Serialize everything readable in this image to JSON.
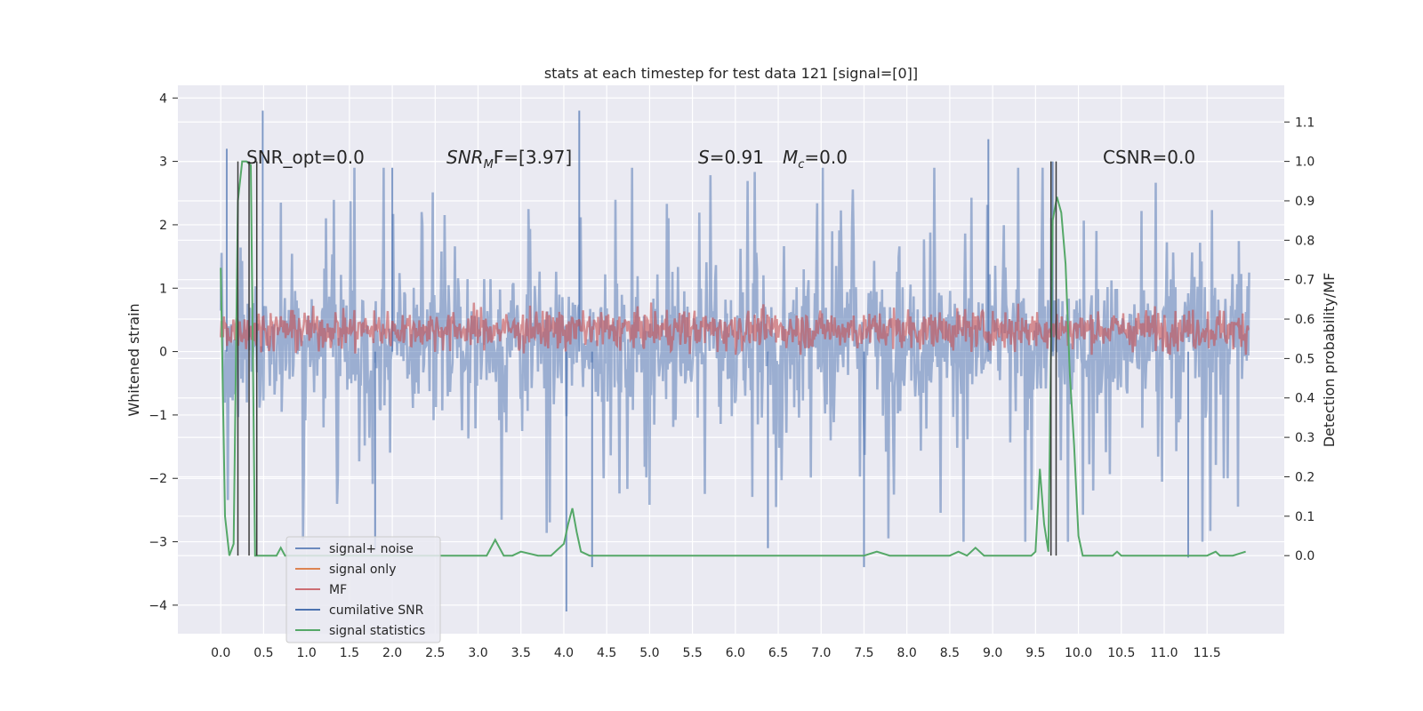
{
  "chart_data": {
    "type": "line",
    "title": "stats at each timestep for test data 121 [signal=[0]]",
    "xlabel": "",
    "ylabel": "Whitened strain",
    "y2label": "Detection probability/MF",
    "xlim": [
      -0.5,
      12.4
    ],
    "ylim": [
      -4.45,
      4.2
    ],
    "y2lim": [
      -0.198,
      1.193
    ],
    "x_ticks": [
      0.0,
      0.5,
      1.0,
      1.5,
      2.0,
      2.5,
      3.0,
      3.5,
      4.0,
      4.5,
      5.0,
      5.5,
      6.0,
      6.5,
      7.0,
      7.5,
      8.0,
      8.5,
      9.0,
      9.5,
      10.0,
      10.5,
      11.0,
      11.5
    ],
    "x_tick_labels": [
      "0.0",
      "0.5",
      "1.0",
      "1.5",
      "2.0",
      "2.5",
      "3.0",
      "3.5",
      "4.0",
      "4.5",
      "5.0",
      "5.5",
      "6.0",
      "6.5",
      "7.0",
      "7.5",
      "8.0",
      "8.5",
      "9.0",
      "9.5",
      "10.0",
      "10.5",
      "11.0",
      "11.5"
    ],
    "y_ticks": [
      -4,
      -3,
      -2,
      -1,
      0,
      1,
      2,
      3,
      4
    ],
    "y_tick_labels": [
      "−4",
      "−3",
      "−2",
      "−1",
      "0",
      "1",
      "2",
      "3",
      "4"
    ],
    "y2_ticks": [
      0.0,
      0.1,
      0.2,
      0.3,
      0.4,
      0.5,
      0.6,
      0.7,
      0.8,
      0.9,
      1.0,
      1.1
    ],
    "y2_tick_labels": [
      "0.0",
      "0.1",
      "0.2",
      "0.3",
      "0.4",
      "0.5",
      "0.6",
      "0.7",
      "0.8",
      "0.9",
      "1.0",
      "1.1"
    ],
    "grid": true,
    "legend_position": "lower-left",
    "annotations": {
      "snr_opt": "SNR_opt=0.0",
      "snr_mf_a": "SNR",
      "snr_mf_sub": "M",
      "snr_mf_b": "F=[3.97]",
      "s_sym": "S",
      "s_val": "=0.91",
      "mc_sym": "M",
      "mc_sub": "c",
      "mc_val": "=0.0",
      "csnr": "CSNR=0.0"
    },
    "series": [
      {
        "name": "signal+ noise",
        "axis": "left",
        "color": "#4c72b0",
        "alpha": 0.5,
        "style": "dense-noise",
        "x_range": [
          0.0,
          11.99
        ],
        "typical_range": [
          -1.4,
          1.7
        ],
        "extremes": [
          {
            "x": 0.49,
            "y": 3.8
          },
          {
            "x": 4.18,
            "y": 3.8
          },
          {
            "x": 0.07,
            "y": 3.2
          },
          {
            "x": 8.95,
            "y": 3.35
          },
          {
            "x": 2.0,
            "y": 2.9
          },
          {
            "x": 4.03,
            "y": -4.1
          },
          {
            "x": 4.33,
            "y": -3.4
          },
          {
            "x": 7.5,
            "y": -3.4
          },
          {
            "x": 6.38,
            "y": -3.1
          },
          {
            "x": 11.28,
            "y": -3.25
          },
          {
            "x": 1.8,
            "y": -3.1
          },
          {
            "x": 9.7,
            "y": 3.0
          }
        ]
      },
      {
        "name": "signal only",
        "axis": "left",
        "color": "#dd8452",
        "values": []
      },
      {
        "name": "MF",
        "axis": "left",
        "color": "#c44e52",
        "alpha": 0.5,
        "style": "band-noise",
        "x_range": [
          0.0,
          11.99
        ],
        "typical_range": [
          -0.05,
          0.8
        ]
      },
      {
        "name": "cumilative SNR",
        "axis": "left",
        "color": "#4c72b0",
        "values": []
      },
      {
        "name": "signal statistics",
        "axis": "right",
        "color": "#55a868",
        "x": [
          0.0,
          0.05,
          0.1,
          0.15,
          0.2,
          0.25,
          0.3,
          0.35,
          0.4,
          0.45,
          0.5,
          0.55,
          0.6,
          0.65,
          0.7,
          0.75,
          0.8,
          1.0,
          1.5,
          2.0,
          2.5,
          3.0,
          3.1,
          3.2,
          3.3,
          3.4,
          3.5,
          3.7,
          3.85,
          4.0,
          4.05,
          4.1,
          4.15,
          4.2,
          4.3,
          4.5,
          5.0,
          5.5,
          5.8,
          6.0,
          6.5,
          7.0,
          7.5,
          7.65,
          7.8,
          8.0,
          8.5,
          8.6,
          8.7,
          8.8,
          8.9,
          9.0,
          9.3,
          9.4,
          9.45,
          9.5,
          9.55,
          9.6,
          9.65,
          9.7,
          9.75,
          9.8,
          9.85,
          9.9,
          9.95,
          10.0,
          10.05,
          10.1,
          10.15,
          10.2,
          10.4,
          10.45,
          10.5,
          11.0,
          11.3,
          11.5,
          11.6,
          11.65,
          11.7,
          11.8,
          11.95
        ],
        "values": [
          0.73,
          0.1,
          0.0,
          0.03,
          0.9,
          1.0,
          1.0,
          0.99,
          0.0,
          0.0,
          0.0,
          0.0,
          0.0,
          0.0,
          0.02,
          0.0,
          0.0,
          0.0,
          0.0,
          0.0,
          0.0,
          0.0,
          0.0,
          0.04,
          0.0,
          0.0,
          0.01,
          0.0,
          0.0,
          0.03,
          0.08,
          0.12,
          0.06,
          0.01,
          0.0,
          0.0,
          0.0,
          0.0,
          0.0,
          0.0,
          0.0,
          0.0,
          0.0,
          0.01,
          0.0,
          0.0,
          0.0,
          0.01,
          0.0,
          0.02,
          0.0,
          0.0,
          0.0,
          0.0,
          0.0,
          0.01,
          0.22,
          0.08,
          0.01,
          0.85,
          0.91,
          0.87,
          0.74,
          0.46,
          0.28,
          0.05,
          0.0,
          0.0,
          0.0,
          0.0,
          0.0,
          0.01,
          0.0,
          0.0,
          0.0,
          0.0,
          0.01,
          0.0,
          0.0,
          0.0,
          0.01
        ]
      }
    ],
    "vertical_markers": [
      0.2,
      0.33,
      0.42,
      9.68,
      9.74
    ],
    "marker_color": "#3a3a3a"
  }
}
